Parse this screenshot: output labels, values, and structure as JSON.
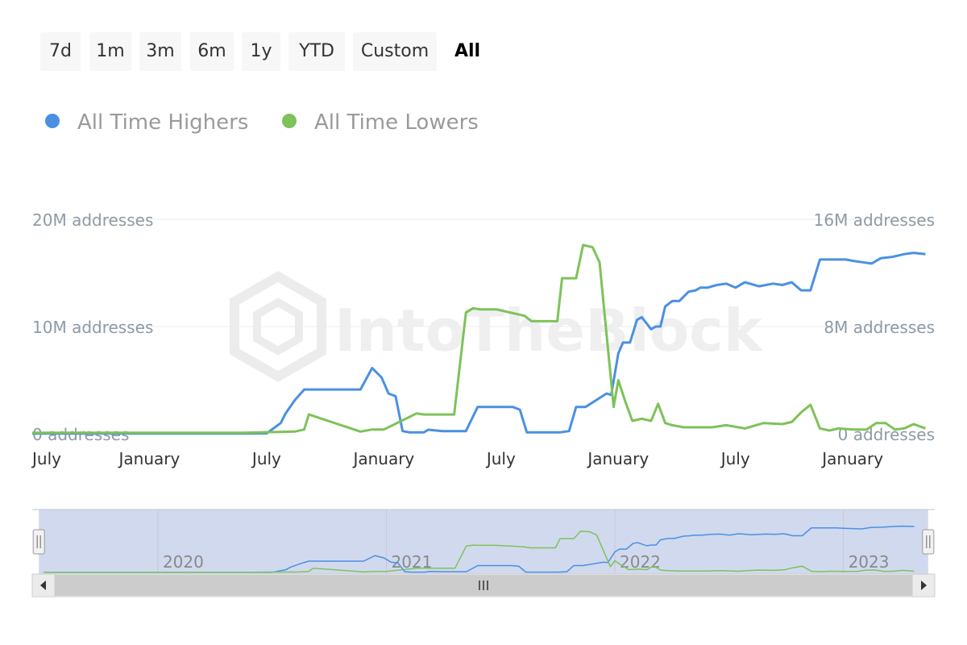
{
  "range_selector": {
    "buttons": [
      "7d",
      "1m",
      "3m",
      "6m",
      "1y",
      "YTD",
      "Custom",
      "All"
    ],
    "selected": "All"
  },
  "legend": {
    "highers": "All Time Highers",
    "lowers": "All Time Lowers"
  },
  "watermark": "IntoTheBlock",
  "colors": {
    "highers": "#4a90e2",
    "lowers": "#7ec25a",
    "navigator_fill": "#d1d9ee"
  },
  "chart_data": {
    "type": "line",
    "series": [
      {
        "name": "All Time Highers",
        "axis": "right",
        "x": [
          2019.5,
          2019.9,
          2020.4,
          2020.5,
          2020.56,
          2020.58,
          2020.62,
          2020.66,
          2020.7,
          2020.9,
          2020.95,
          2020.99,
          2021.02,
          2021.05,
          2021.08,
          2021.11,
          2021.14,
          2021.17,
          2021.19,
          2021.25,
          2021.3,
          2021.35,
          2021.4,
          2021.5,
          2021.55,
          2021.58,
          2021.61,
          2021.75,
          2021.79,
          2021.82,
          2021.86,
          2021.95,
          2021.97,
          2022.0,
          2022.02,
          2022.05,
          2022.08,
          2022.1,
          2022.14,
          2022.16,
          2022.18,
          2022.2,
          2022.23,
          2022.26,
          2022.3,
          2022.33,
          2022.35,
          2022.38,
          2022.42,
          2022.46,
          2022.5,
          2022.54,
          2022.6,
          2022.66,
          2022.7,
          2022.74,
          2022.78,
          2022.82,
          2022.86,
          2022.9,
          2022.93,
          2022.97,
          2023.0,
          2023.04,
          2023.08,
          2023.12,
          2023.17,
          2023.22,
          2023.26,
          2023.31
        ],
        "y": [
          0.02,
          0.02,
          0.02,
          0.03,
          0.8,
          1.5,
          2.5,
          3.3,
          3.3,
          3.3,
          4.9,
          4.2,
          3.0,
          2.8,
          0.2,
          0.1,
          0.1,
          0.1,
          0.3,
          0.2,
          0.2,
          0.2,
          2.0,
          2.0,
          2.0,
          1.8,
          0.1,
          0.1,
          0.2,
          2.0,
          2.0,
          3.0,
          2.9,
          6.0,
          6.8,
          6.8,
          8.5,
          8.7,
          7.8,
          8.0,
          8.0,
          9.5,
          9.9,
          9.9,
          10.6,
          10.7,
          10.9,
          10.9,
          11.1,
          11.2,
          10.9,
          11.3,
          11.0,
          11.2,
          11.1,
          11.3,
          10.7,
          10.7,
          13.0,
          13.0,
          13.0,
          13.0,
          12.9,
          12.8,
          12.7,
          13.1,
          13.2,
          13.4,
          13.5,
          13.4
        ]
      },
      {
        "name": "All Time Lowers",
        "axis": "left",
        "x": [
          2019.5,
          2020.4,
          2020.62,
          2020.66,
          2020.68,
          2020.9,
          2020.95,
          2020.97,
          2021.0,
          2021.14,
          2021.17,
          2021.2,
          2021.25,
          2021.3,
          2021.35,
          2021.38,
          2021.41,
          2021.45,
          2021.48,
          2021.6,
          2021.63,
          2021.66,
          2021.74,
          2021.76,
          2021.8,
          2021.82,
          2021.85,
          2021.89,
          2021.92,
          2021.98,
          2022.0,
          2022.03,
          2022.06,
          2022.1,
          2022.14,
          2022.17,
          2022.2,
          2022.23,
          2022.28,
          2022.33,
          2022.4,
          2022.46,
          2022.54,
          2022.62,
          2022.7,
          2022.74,
          2022.78,
          2022.82,
          2022.86,
          2022.9,
          2022.94,
          2023.0,
          2023.06,
          2023.1,
          2023.14,
          2023.18,
          2023.22,
          2023.26,
          2023.31
        ],
        "y": [
          0.1,
          0.1,
          0.2,
          0.4,
          1.8,
          0.2,
          0.4,
          0.4,
          0.4,
          1.9,
          1.8,
          1.8,
          1.8,
          1.8,
          11.3,
          11.7,
          11.6,
          11.6,
          11.6,
          11.0,
          10.5,
          10.5,
          10.5,
          14.5,
          14.5,
          14.5,
          17.6,
          17.4,
          16.0,
          2.5,
          5.0,
          3.0,
          1.2,
          1.4,
          1.2,
          2.8,
          1.0,
          0.8,
          0.6,
          0.6,
          0.6,
          0.8,
          0.5,
          1.0,
          0.9,
          1.1,
          2.0,
          2.7,
          0.5,
          0.3,
          0.5,
          0.4,
          0.4,
          1.0,
          1.0,
          0.4,
          0.5,
          0.9,
          0.5
        ]
      }
    ],
    "x_ticks": [
      {
        "value": 2019.5,
        "label": "July"
      },
      {
        "value": 2020.0,
        "label": "January"
      },
      {
        "value": 2020.5,
        "label": "July"
      },
      {
        "value": 2021.0,
        "label": "January"
      },
      {
        "value": 2021.5,
        "label": "July"
      },
      {
        "value": 2022.0,
        "label": "January"
      },
      {
        "value": 2022.5,
        "label": "July"
      },
      {
        "value": 2023.0,
        "label": "January"
      }
    ],
    "xlim": [
      2019.5,
      2023.35
    ],
    "y_left": {
      "ylim": [
        0,
        20
      ],
      "ticks": [
        {
          "value": 0,
          "label": "0 addresses"
        },
        {
          "value": 10,
          "label": "10M addresses"
        },
        {
          "value": 20,
          "label": "20M addresses"
        }
      ]
    },
    "y_right": {
      "ylim": [
        0,
        16
      ],
      "ticks": [
        {
          "value": 0,
          "label": "0 addresses"
        },
        {
          "value": 8,
          "label": "8M addresses"
        },
        {
          "value": 16,
          "label": "16M addresses"
        }
      ]
    },
    "grid": true,
    "legend_position": "top-left",
    "navigator": {
      "xlim": [
        2019.45,
        2023.4
      ],
      "year_ticks": [
        {
          "value": 2020.0,
          "label": "2020"
        },
        {
          "value": 2021.0,
          "label": "2021"
        },
        {
          "value": 2022.0,
          "label": "2022"
        },
        {
          "value": 2023.0,
          "label": "2023"
        }
      ],
      "selection": [
        2019.5,
        2023.35
      ]
    }
  }
}
